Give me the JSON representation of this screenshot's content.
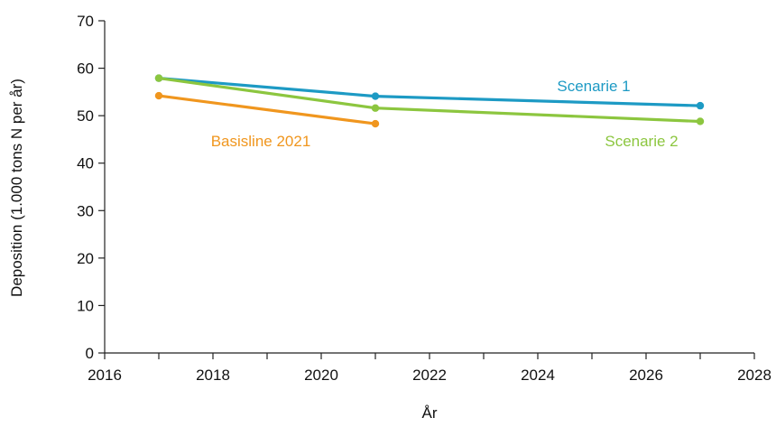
{
  "chart_data": {
    "type": "line",
    "title": "",
    "xlabel": "År",
    "ylabel": "Deposition (1.000 tons N per år)",
    "xlim": [
      2016,
      2028
    ],
    "ylim": [
      0,
      70
    ],
    "x_ticks": [
      2016,
      2018,
      2020,
      2022,
      2024,
      2026,
      2028
    ],
    "y_ticks": [
      0,
      10,
      20,
      30,
      40,
      50,
      60,
      70
    ],
    "grid": false,
    "legend": "inline labels next to lines",
    "series": [
      {
        "name": "Basisline 2021",
        "color": "#f0961e",
        "x": [
          2017,
          2021
        ],
        "y": [
          54.2,
          48.3
        ]
      },
      {
        "name": "Scenarie 1",
        "color": "#1d9ac4",
        "x": [
          2017,
          2021,
          2027
        ],
        "y": [
          57.9,
          54.1,
          52.1
        ]
      },
      {
        "name": "Scenarie 2",
        "color": "#8cc63f",
        "x": [
          2017,
          2021,
          2027
        ],
        "y": [
          57.9,
          51.6,
          48.8
        ]
      }
    ]
  }
}
